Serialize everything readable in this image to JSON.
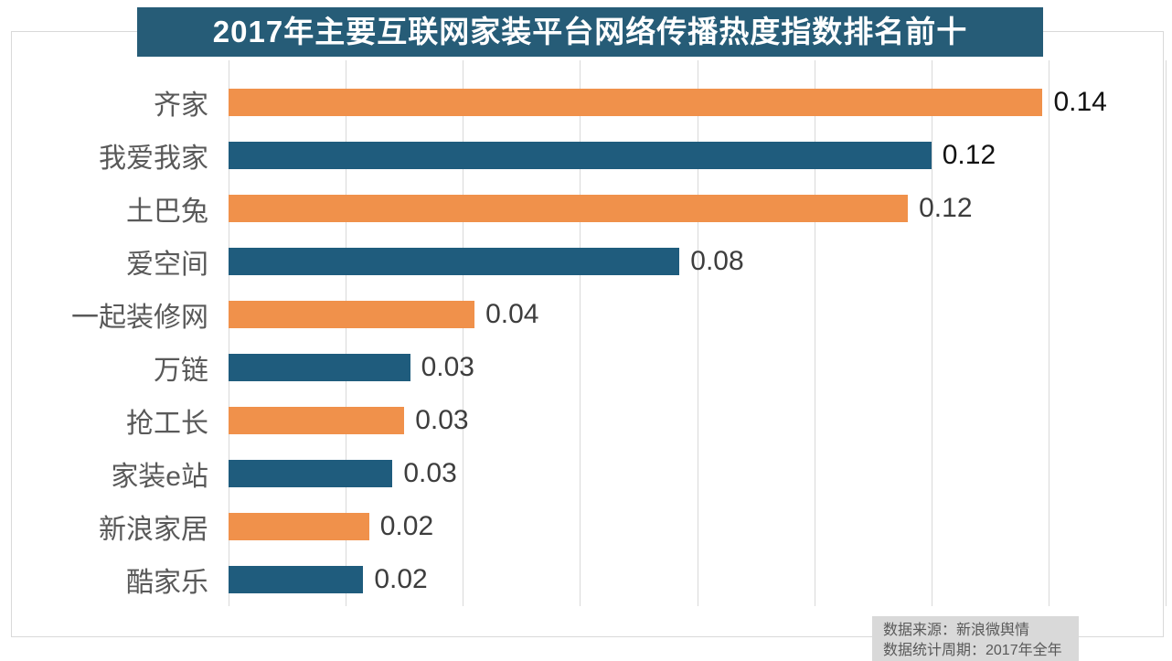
{
  "title": {
    "text": "2017年主要互联网家装平台网络传播热度指数排名前十",
    "bg_color": "#265C77",
    "text_color": "#FFFFFF"
  },
  "source_box": {
    "lines": [
      "数据来源：新浪微舆情",
      "数据统计周期：2017年全年"
    ],
    "bg_color": "#D9D9D9",
    "text_color": "#595959"
  },
  "chart_data": {
    "type": "bar",
    "orientation": "horizontal",
    "title": "2017年主要互联网家装平台网络传播热度指数排名前十",
    "categories": [
      "齐家",
      "我爱我家",
      "土巴兔",
      "爱空间",
      "一起装修网",
      "万链",
      "抢工长",
      "家装e站",
      "新浪家居",
      "酷家乐"
    ],
    "values": [
      0.14,
      0.12,
      0.12,
      0.08,
      0.04,
      0.03,
      0.03,
      0.03,
      0.02,
      0.02
    ],
    "value_labels": [
      "0.14",
      "0.12",
      "0.12",
      "0.08",
      "0.04",
      "0.03",
      "0.03",
      "0.03",
      "0.02",
      "0.02"
    ],
    "bar_fractions_precise": [
      0.139,
      0.12,
      0.116,
      0.077,
      0.042,
      0.031,
      0.03,
      0.028,
      0.024,
      0.023
    ],
    "xlabel": "",
    "ylabel": "",
    "xlim": [
      0,
      0.16
    ],
    "grid": true,
    "grid_step": 0.02,
    "gridline_count": 9,
    "x_tick_labels_visible": false,
    "legend_position": "none",
    "bar_color_odd_rows": "#F0914B",
    "bar_color_even_rows": "#1F5C7D",
    "value_label_colors": [
      "#121212",
      "#121212",
      "#3D3D3D",
      "#3D3D3D",
      "#3D3D3D",
      "#3D3D3D",
      "#3D3D3D",
      "#3D3D3D",
      "#3D3D3D",
      "#3D3D3D"
    ],
    "category_label_color": "#595959",
    "gridline_color": "#D9D9D9"
  }
}
